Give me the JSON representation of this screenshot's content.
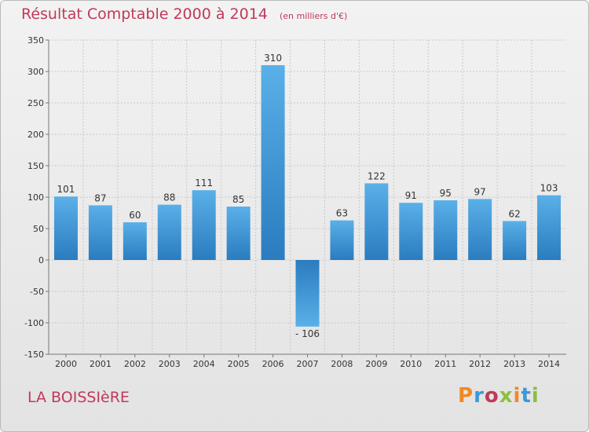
{
  "header": {
    "title": "Résultat Comptable 2000 à 2014",
    "unit": "(en milliers d'€)"
  },
  "footer": {
    "commune": "LA BOISSIèRE",
    "logo": "Proxiti"
  },
  "colors": {
    "title": "#c0395a",
    "bar_top": "#5ab0e8",
    "bar_bottom": "#2a7cbf",
    "logo_letters": [
      "#f08a24",
      "#3a9ad9",
      "#c0395a",
      "#8dbf3c",
      "#f08a24",
      "#3a9ad9",
      "#8dbf3c"
    ]
  },
  "chart_data": {
    "type": "bar",
    "title": "Résultat Comptable 2000 à 2014",
    "subtitle": "(en milliers d'€)",
    "xlabel": "",
    "ylabel": "",
    "categories": [
      "2000",
      "2001",
      "2002",
      "2003",
      "2004",
      "2005",
      "2006",
      "2007",
      "2008",
      "2009",
      "2010",
      "2011",
      "2012",
      "2013",
      "2014"
    ],
    "values": [
      101,
      87,
      60,
      88,
      111,
      85,
      310,
      -106,
      63,
      122,
      91,
      95,
      97,
      62,
      103
    ],
    "value_labels": [
      "101",
      "87",
      "60",
      "88",
      "111",
      "85",
      "310",
      "- 106",
      "63",
      "122",
      "91",
      "95",
      "97",
      "62",
      "103"
    ],
    "ylim": [
      -150,
      350
    ],
    "yticks": [
      -150,
      -100,
      -50,
      0,
      50,
      100,
      150,
      200,
      250,
      300,
      350
    ],
    "grid": true
  }
}
